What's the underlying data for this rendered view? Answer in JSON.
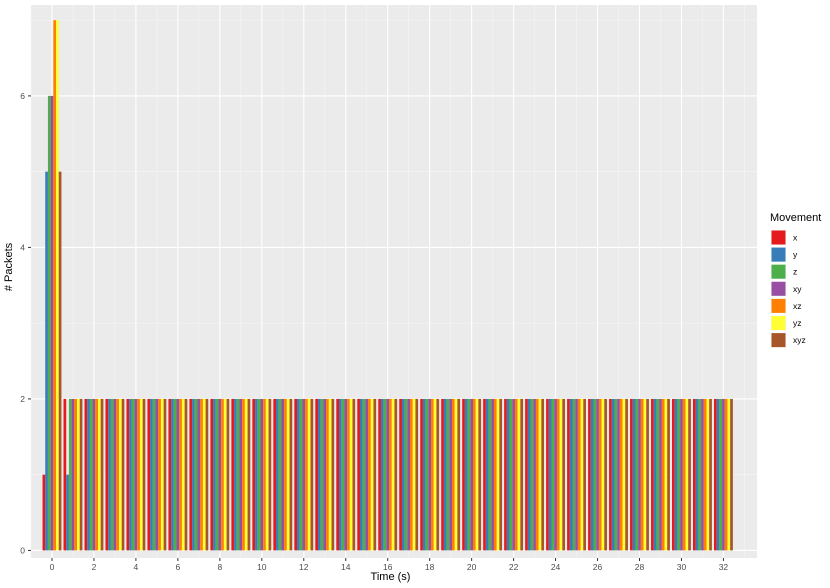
{
  "chart_data": {
    "type": "bar",
    "xlabel": "Time (s)",
    "ylabel": "# Packets",
    "xlim": [
      -1.0,
      33.6
    ],
    "ylim": [
      -0.1,
      7.2
    ],
    "x_ticks": [
      0,
      2,
      4,
      6,
      8,
      10,
      12,
      14,
      16,
      18,
      20,
      22,
      24,
      26,
      28,
      30,
      32
    ],
    "y_ticks": [
      0,
      2,
      4,
      6
    ],
    "grid": true,
    "legend_title": "Movement",
    "legend_position": "right",
    "categories": [
      0,
      1,
      2,
      3,
      4,
      5,
      6,
      7,
      8,
      9,
      10,
      11,
      12,
      13,
      14,
      15,
      16,
      17,
      18,
      19,
      20,
      21,
      22,
      23,
      24,
      25,
      26,
      27,
      28,
      29,
      30,
      31,
      32
    ],
    "series": [
      {
        "name": "x",
        "color": "#E41A1C",
        "values": [
          1,
          2,
          2,
          2,
          2,
          2,
          2,
          2,
          2,
          2,
          2,
          2,
          2,
          2,
          2,
          2,
          2,
          2,
          2,
          2,
          2,
          2,
          2,
          2,
          2,
          2,
          2,
          2,
          2,
          2,
          2,
          2,
          2
        ]
      },
      {
        "name": "y",
        "color": "#377EB8",
        "values": [
          5,
          1,
          2,
          2,
          2,
          2,
          2,
          2,
          2,
          2,
          2,
          2,
          2,
          2,
          2,
          2,
          2,
          2,
          2,
          2,
          2,
          2,
          2,
          2,
          2,
          2,
          2,
          2,
          2,
          2,
          2,
          2,
          2
        ]
      },
      {
        "name": "z",
        "color": "#4DAF4A",
        "values": [
          6,
          2,
          2,
          2,
          2,
          2,
          2,
          2,
          2,
          2,
          2,
          2,
          2,
          2,
          2,
          2,
          2,
          2,
          2,
          2,
          2,
          2,
          2,
          2,
          2,
          2,
          2,
          2,
          2,
          2,
          2,
          2,
          2
        ]
      },
      {
        "name": "xy",
        "color": "#984EA3",
        "values": [
          6,
          2,
          2,
          2,
          2,
          2,
          2,
          2,
          2,
          2,
          2,
          2,
          2,
          2,
          2,
          2,
          2,
          2,
          2,
          2,
          2,
          2,
          2,
          2,
          2,
          2,
          2,
          2,
          2,
          2,
          2,
          2,
          2
        ]
      },
      {
        "name": "xz",
        "color": "#FF7F00",
        "values": [
          7,
          2,
          2,
          2,
          2,
          2,
          2,
          2,
          2,
          2,
          2,
          2,
          2,
          2,
          2,
          2,
          2,
          2,
          2,
          2,
          2,
          2,
          2,
          2,
          2,
          2,
          2,
          2,
          2,
          2,
          2,
          2,
          2
        ]
      },
      {
        "name": "yz",
        "color": "#FFFF33",
        "values": [
          7,
          2,
          2,
          2,
          2,
          2,
          2,
          2,
          2,
          2,
          2,
          2,
          2,
          2,
          2,
          2,
          2,
          2,
          2,
          2,
          2,
          2,
          2,
          2,
          2,
          2,
          2,
          2,
          2,
          2,
          2,
          2,
          2
        ]
      },
      {
        "name": "xyz",
        "color": "#A65628",
        "values": [
          5,
          2,
          2,
          2,
          2,
          2,
          2,
          2,
          2,
          2,
          2,
          2,
          2,
          2,
          2,
          2,
          2,
          2,
          2,
          2,
          2,
          2,
          2,
          2,
          2,
          2,
          2,
          2,
          2,
          2,
          2,
          2,
          2
        ]
      }
    ]
  }
}
